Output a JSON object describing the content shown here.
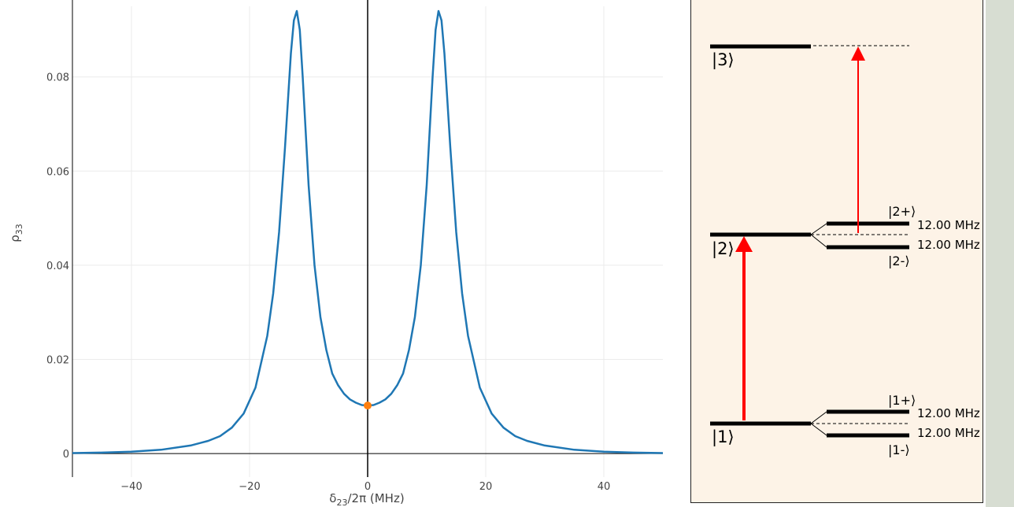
{
  "chart_data": {
    "type": "line",
    "title": "",
    "xlabel_main": "δ",
    "xlabel_sub": "23",
    "xlabel_rest": "/2π (MHz)",
    "ylabel_main": "ρ",
    "ylabel_sub": "33",
    "xlim": [
      -50,
      50
    ],
    "ylim": [
      -0.005,
      0.095
    ],
    "x_ticks": [
      -40,
      -20,
      0,
      20,
      40
    ],
    "x_tick_labels": [
      "−40",
      "−20",
      "0",
      "20",
      "40"
    ],
    "y_ticks": [
      0,
      0.02,
      0.04,
      0.06,
      0.08
    ],
    "y_tick_labels": [
      "0",
      "0.02",
      "0.04",
      "0.06",
      "0.08"
    ],
    "grid": true,
    "line_color": "#1f77b4",
    "marker_color": "#ff7f0e",
    "marker": {
      "x": 0,
      "y": 0.0102
    },
    "series": [
      {
        "x": [
          -50,
          -45,
          -40,
          -35,
          -30,
          -27,
          -25,
          -23,
          -21,
          -19,
          -17,
          -16,
          -15,
          -14,
          -13,
          -12.5,
          -12,
          -11.5,
          -11,
          -10,
          -9,
          -8,
          -7,
          -6,
          -5,
          -4,
          -3,
          -2,
          -1,
          0,
          1,
          2,
          3,
          4,
          5,
          6,
          7,
          8,
          9,
          10,
          11,
          11.5,
          12,
          12.5,
          13,
          14,
          15,
          16,
          17,
          19,
          21,
          23,
          25,
          27,
          30,
          35,
          40,
          45,
          50
        ],
        "y": [
          0.0001,
          0.0002,
          0.0004,
          0.0008,
          0.0017,
          0.0027,
          0.0037,
          0.0055,
          0.0085,
          0.014,
          0.025,
          0.034,
          0.047,
          0.065,
          0.085,
          0.092,
          0.094,
          0.09,
          0.08,
          0.057,
          0.04,
          0.029,
          0.022,
          0.017,
          0.0145,
          0.0127,
          0.0115,
          0.0108,
          0.0103,
          0.0102,
          0.0103,
          0.0108,
          0.0115,
          0.0127,
          0.0145,
          0.017,
          0.022,
          0.029,
          0.04,
          0.057,
          0.08,
          0.09,
          0.094,
          0.092,
          0.085,
          0.065,
          0.047,
          0.034,
          0.025,
          0.014,
          0.0085,
          0.0055,
          0.0037,
          0.0027,
          0.0017,
          0.0008,
          0.0004,
          0.0002,
          0.0001
        ]
      }
    ]
  },
  "diagram": {
    "levels": {
      "l3": "|3⟩",
      "l2": "|2⟩",
      "l1": "|1⟩",
      "l2p": "|2+⟩",
      "l2m": "|2-⟩",
      "l1p": "|1+⟩",
      "l1m": "|1-⟩"
    },
    "splittings": {
      "s2_up": "12.00 MHz",
      "s2_down": "12.00 MHz",
      "s1_up": "12.00 MHz",
      "s1_down": "12.00 MHz"
    },
    "arrow_color": "#ff0000"
  }
}
